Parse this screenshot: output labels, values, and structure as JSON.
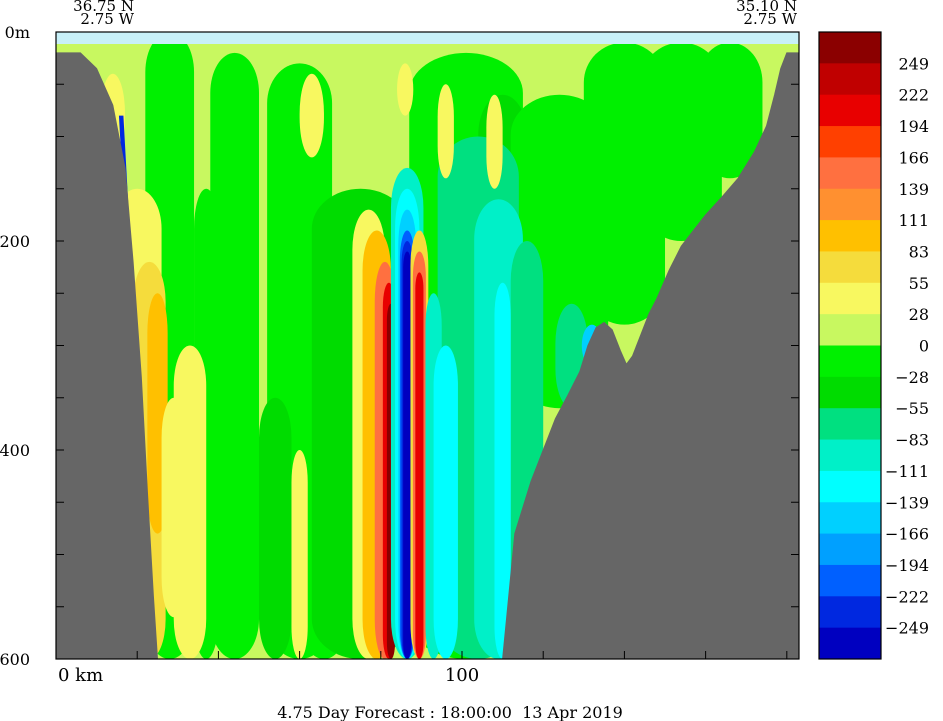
{
  "chart_data": {
    "type": "heatmap",
    "title": "",
    "footer": "4.75 Day Forecast : 18:00:00  13 Apr 2019",
    "corner_labels": {
      "left_lat": "36.75 N",
      "left_lon": "2.75 W",
      "right_lat": "35.10 N",
      "right_lon": "2.75 W"
    },
    "xlabel": "",
    "ylabel": "",
    "x_axis": {
      "unit_label": "0 km",
      "ticks": [
        {
          "value": 0,
          "label": "0 km"
        },
        {
          "value": 100,
          "label": "100"
        }
      ],
      "range": [
        0,
        183
      ]
    },
    "y_axis": {
      "ticks": [
        {
          "value": 0,
          "label": "0m"
        },
        {
          "value": 200,
          "label": "200"
        },
        {
          "value": 400,
          "label": "400"
        },
        {
          "value": 600,
          "label": "600"
        }
      ],
      "range": [
        0,
        600
      ],
      "inverted": true
    },
    "colorbar": {
      "labels": [
        "249",
        "222",
        "194",
        "166",
        "139",
        "111",
        "83",
        "55",
        "28",
        "0",
        "-28",
        "-55",
        "-83",
        "-111",
        "-139",
        "-166",
        "-194",
        "-222",
        "-249"
      ],
      "colors": [
        "#8b0000",
        "#c00000",
        "#e80000",
        "#ff4000",
        "#ff7040",
        "#ff9030",
        "#ffc000",
        "#f5dc3c",
        "#f8f860",
        "#c8f860",
        "#00f000",
        "#00dc00",
        "#00e080",
        "#00f0c8",
        "#00ffff",
        "#00d0ff",
        "#00a0ff",
        "#0060ff",
        "#0028e0",
        "#0000c0"
      ]
    },
    "bathymetry_color": "#666666",
    "bottom_profile": [
      [
        0,
        20
      ],
      [
        6,
        20
      ],
      [
        10,
        35
      ],
      [
        14,
        70
      ],
      [
        17,
        130
      ],
      [
        19,
        220
      ],
      [
        21,
        330
      ],
      [
        22.5,
        440
      ],
      [
        24,
        540
      ],
      [
        25,
        600
      ],
      [
        110,
        600
      ],
      [
        111,
        560
      ],
      [
        113,
        480
      ],
      [
        117,
        430
      ],
      [
        120,
        400
      ],
      [
        123,
        370
      ],
      [
        126,
        348
      ],
      [
        129,
        325
      ],
      [
        131,
        300
      ],
      [
        133,
        283
      ],
      [
        135,
        278
      ],
      [
        137,
        285
      ],
      [
        139,
        305
      ],
      [
        140.5,
        318
      ],
      [
        142,
        310
      ],
      [
        144,
        290
      ],
      [
        146,
        270
      ],
      [
        148,
        255
      ],
      [
        151,
        228
      ],
      [
        154,
        205
      ],
      [
        157,
        190
      ],
      [
        160,
        175
      ],
      [
        164,
        158
      ],
      [
        168,
        140
      ],
      [
        172,
        115
      ],
      [
        175,
        90
      ],
      [
        177,
        60
      ],
      [
        178.5,
        35
      ],
      [
        180,
        20
      ],
      [
        183,
        20
      ]
    ]
  }
}
